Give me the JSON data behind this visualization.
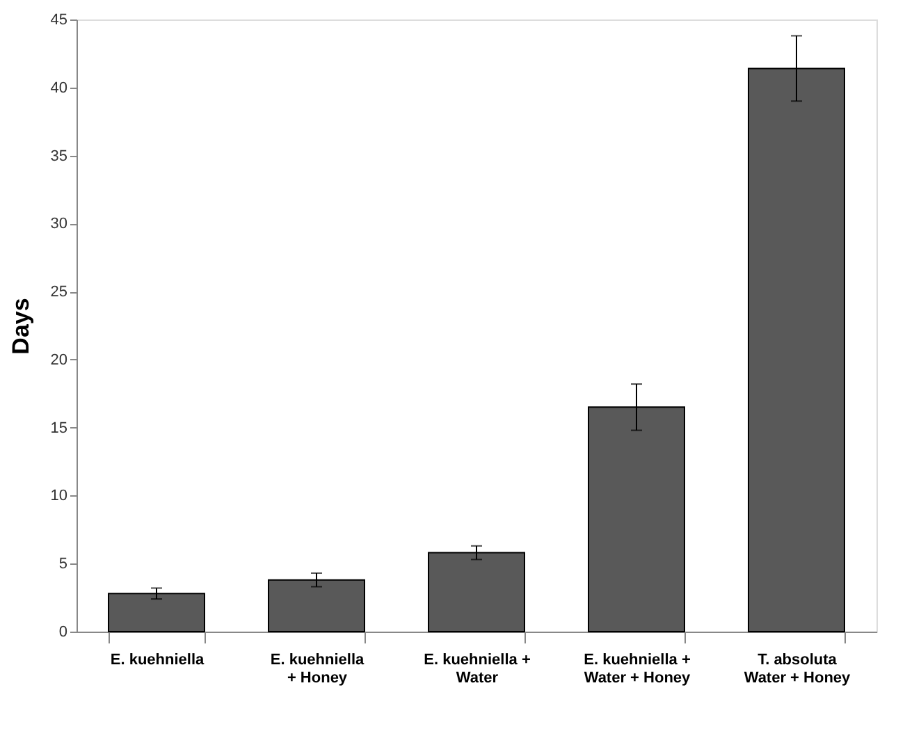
{
  "chart_data": {
    "type": "bar",
    "ylabel": "Days",
    "categories": [
      "E. kuehniella",
      "E. kuehniella\n+ Honey",
      "E. kuehniella +\nWater",
      "E. kuehniella +\nWater + Honey",
      "T. absoluta\nWater + Honey"
    ],
    "values": [
      2.8,
      3.8,
      5.8,
      16.5,
      41.4
    ],
    "errors": [
      0.4,
      0.5,
      0.5,
      1.7,
      2.4
    ],
    "color": "#595959",
    "ylim": [
      0,
      45
    ],
    "yticks": [
      0,
      5,
      10,
      15,
      20,
      25,
      30,
      35,
      40,
      45
    ],
    "grid": false
  }
}
